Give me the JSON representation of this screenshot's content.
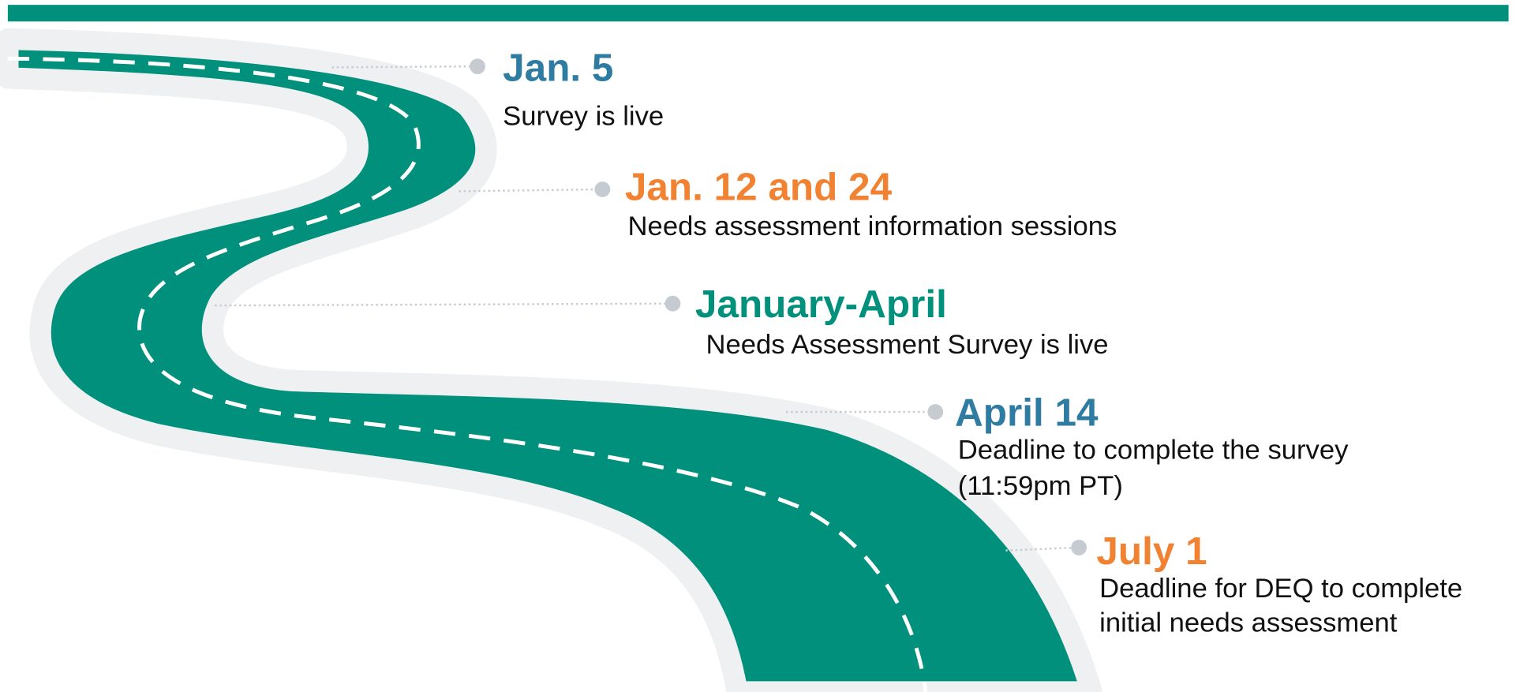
{
  "milestones": [
    {
      "date": "Jan. 5",
      "description": [
        "Survey is live"
      ]
    },
    {
      "date": "Jan. 12 and 24",
      "description": [
        "Needs assessment information sessions"
      ]
    },
    {
      "date": "January-April",
      "description": [
        "Needs Assessment Survey is live"
      ]
    },
    {
      "date": "April 14",
      "description": [
        "Deadline to complete the survey",
        "(11:59pm PT)"
      ]
    },
    {
      "date": "July 1",
      "description": [
        "Deadline for DEQ to complete",
        "initial needs assessment"
      ]
    }
  ]
}
